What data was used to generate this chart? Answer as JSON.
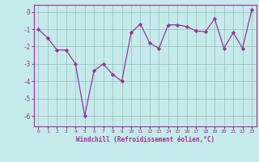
{
  "x": [
    0,
    1,
    2,
    3,
    4,
    5,
    6,
    7,
    8,
    9,
    10,
    11,
    12,
    13,
    14,
    15,
    16,
    17,
    18,
    19,
    20,
    21,
    22,
    23
  ],
  "y": [
    -1.0,
    -1.5,
    -2.2,
    -2.2,
    -3.0,
    -6.0,
    -3.4,
    -3.0,
    -3.6,
    -4.0,
    -1.2,
    -0.7,
    -1.8,
    -2.1,
    -0.75,
    -0.75,
    -0.85,
    -1.1,
    -1.15,
    -0.4,
    -2.1,
    -1.2,
    -2.1,
    0.1
  ],
  "xlabel": "Windchill (Refroidissement éolien,°C)",
  "ylim": [
    -6.6,
    0.4
  ],
  "xlim": [
    -0.5,
    23.5
  ],
  "yticks": [
    0,
    -1,
    -2,
    -3,
    -4,
    -5,
    -6
  ],
  "ytick_labels": [
    "0",
    "-1",
    "-2",
    "-3",
    "-4",
    "-5",
    "-6"
  ],
  "xticks": [
    0,
    1,
    2,
    3,
    4,
    5,
    6,
    7,
    8,
    9,
    10,
    11,
    12,
    13,
    14,
    15,
    16,
    17,
    18,
    19,
    20,
    21,
    22,
    23
  ],
  "line_color": "#993399",
  "marker_color": "#993399",
  "bg_color": "#c5eaea",
  "grid_color": "#99bbbb",
  "axis_label_color": "#993399",
  "tick_label_color": "#993399",
  "spine_color": "#993399"
}
